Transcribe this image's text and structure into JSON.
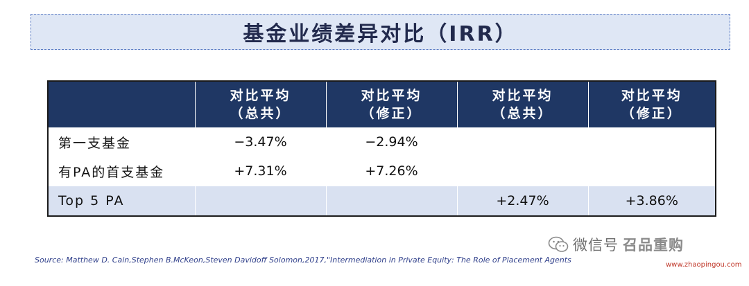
{
  "title": "基金业绩差异对比（IRR）",
  "table": {
    "headers": [
      {
        "line1": "",
        "line2": ""
      },
      {
        "line1": "对比平均",
        "line2": "（总共）"
      },
      {
        "line1": "对比平均",
        "line2": "（修正）"
      },
      {
        "line1": "对比平均",
        "line2": "（总共）"
      },
      {
        "line1": "对比平均",
        "line2": "（修正）"
      }
    ],
    "rows": [
      {
        "label": "第一支基金",
        "cells": [
          "−3.47%",
          "−2.94%",
          "",
          ""
        ]
      },
      {
        "label": "有PA的首支基金",
        "cells": [
          "+7.31%",
          "+7.26%",
          "",
          ""
        ]
      },
      {
        "label": "Top 5 PA",
        "cells": [
          "",
          "",
          "+2.47%",
          "+3.86%"
        ]
      }
    ]
  },
  "source": "Source:  Matthew D. Cain,Stephen B.McKeon,Steven Davidoff Solomon,2017,\"Intermediation in Private Equity: The Role of Placement Agents",
  "watermark": {
    "text": "微信号",
    "brand": "召品重购",
    "url": "www.zhaopingou.com",
    "icon": "wechat-icon"
  },
  "colors": {
    "header_bg": "#1f3764",
    "title_bg": "#dfe7f5",
    "title_border": "#5b7cc4",
    "highlight_row": "#d9e1f1",
    "source_text": "#2f3f8a"
  }
}
